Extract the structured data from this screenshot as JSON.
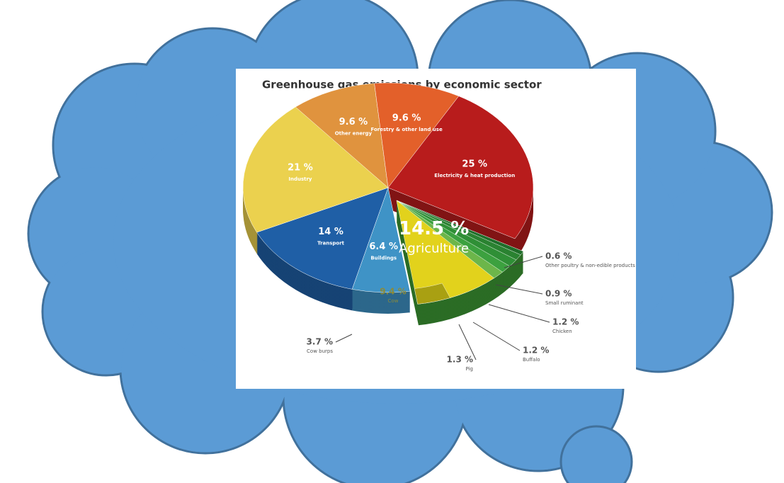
{
  "chart_data": {
    "type": "pie",
    "title": "Greenhouse gas emissions by economic sector",
    "categories": [
      "Other energy",
      "Forestry & other land use",
      "Electricity & heat production",
      "Agriculture",
      "Buildings",
      "Transport",
      "Industry"
    ],
    "values": [
      9.6,
      9.6,
      25,
      14.5,
      6.4,
      14,
      21
    ],
    "value_labels": [
      "9.6 %",
      "9.6 %",
      "25 %",
      "14.5 %",
      "6.4 %",
      "14 %",
      "21 %"
    ],
    "colors": [
      "#e0933e",
      "#e3602a",
      "#b81c1c",
      "#3e9a35",
      "#3f93c6",
      "#1f5fa6",
      "#ebd14e"
    ],
    "breakdown": {
      "categories": [
        "Other poultry & non-edible products",
        "Small ruminant",
        "Chicken",
        "Buffalo",
        "Pig",
        "Cow",
        "Cow burps"
      ],
      "values": [
        0.6,
        0.9,
        1.2,
        1.2,
        1.3,
        9.4,
        3.7
      ],
      "value_labels": [
        "0.6 %",
        "0.9 %",
        "1.2 %",
        "1.2 %",
        "1.3 %",
        "9.4 %",
        "3.7 %"
      ],
      "colors": [
        "#1f6e2a",
        "#2a8231",
        "#2f8f36",
        "#3ca13f",
        "#6cb64a",
        "#e2d21c",
        "#a9a012"
      ]
    }
  }
}
